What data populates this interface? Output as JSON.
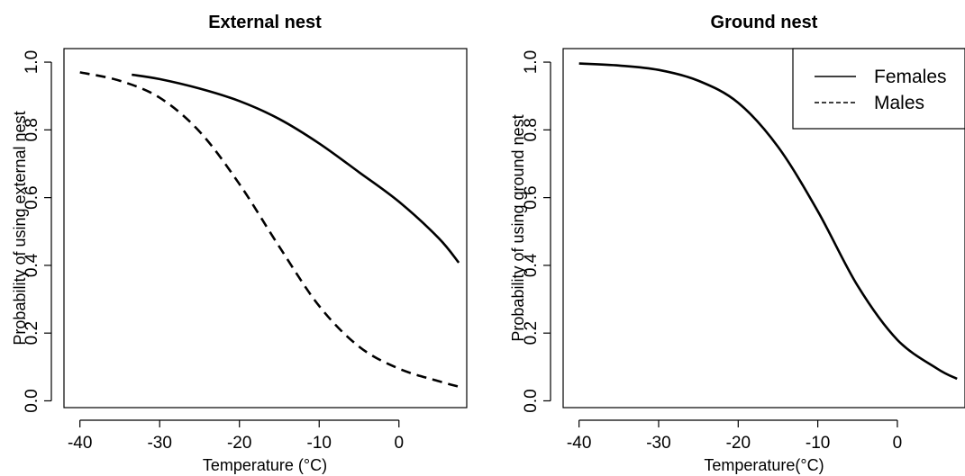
{
  "chart_data": [
    {
      "type": "line",
      "title": "External nest",
      "xlabel": "Temperature (°C)",
      "ylabel": "Probability of using external nest",
      "xlim": [
        -42,
        8.5
      ],
      "ylim": [
        -0.02,
        1.04
      ],
      "x_ticks": [
        -40,
        -30,
        -20,
        -10,
        0
      ],
      "x_tick_labels": [
        "-40",
        "-30",
        "-20",
        "-10",
        "0"
      ],
      "y_ticks": [
        0.0,
        0.2,
        0.4,
        0.6,
        0.8,
        1.0
      ],
      "y_tick_labels": [
        "0.0",
        "0.2",
        "0.4",
        "0.6",
        "0.8",
        "1.0"
      ],
      "grid": false,
      "series": [
        {
          "name": "Females",
          "style": "solid",
          "color": "#000000",
          "x": [
            -33.5,
            -30,
            -25,
            -20,
            -15,
            -10,
            -5,
            0,
            5,
            7.5
          ],
          "y": [
            0.963,
            0.95,
            0.922,
            0.885,
            0.832,
            0.76,
            0.675,
            0.588,
            0.48,
            0.408
          ]
        },
        {
          "name": "Males",
          "style": "dashed",
          "color": "#000000",
          "x": [
            -40,
            -35,
            -30,
            -25,
            -20,
            -15,
            -10,
            -5,
            0,
            5,
            7.5
          ],
          "y": [
            0.97,
            0.945,
            0.895,
            0.795,
            0.64,
            0.455,
            0.28,
            0.16,
            0.095,
            0.058,
            0.042
          ]
        }
      ]
    },
    {
      "type": "line",
      "title": "Ground nest",
      "xlabel": "Temperature(°C)",
      "ylabel": "Probability of using ground nest",
      "xlim": [
        -42,
        8.5
      ],
      "ylim": [
        -0.02,
        1.04
      ],
      "x_ticks": [
        -40,
        -30,
        -20,
        -10,
        0
      ],
      "x_tick_labels": [
        "-40",
        "-30",
        "-20",
        "-10",
        "0"
      ],
      "y_ticks": [
        0.0,
        0.2,
        0.4,
        0.6,
        0.8,
        1.0
      ],
      "y_tick_labels": [
        "0.0",
        "0.2",
        "0.4",
        "0.6",
        "0.8",
        "1.0"
      ],
      "grid": false,
      "legend": {
        "position": "top-right",
        "entries": [
          {
            "label": "Females",
            "style": "solid"
          },
          {
            "label": "Males",
            "style": "dashed"
          }
        ]
      },
      "series": [
        {
          "name": "Females",
          "style": "solid",
          "color": "#000000",
          "x": [
            -40,
            -35,
            -30,
            -25,
            -20,
            -15,
            -10,
            -5,
            0,
            5,
            7.5
          ],
          "y": [
            0.996,
            0.99,
            0.977,
            0.945,
            0.88,
            0.75,
            0.56,
            0.34,
            0.18,
            0.095,
            0.065
          ]
        }
      ]
    }
  ]
}
